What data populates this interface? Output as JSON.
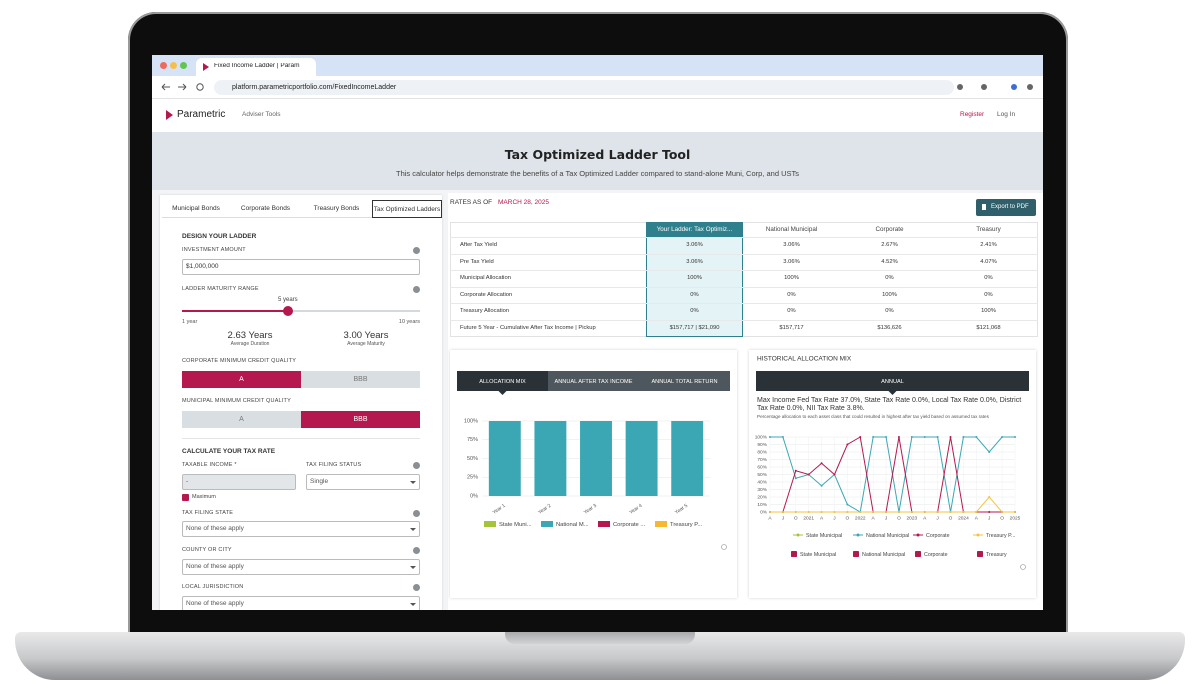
{
  "browser": {
    "tab_title": "Fixed Income Ladder | Param",
    "url": "platform.parametricportfolio.com/FixedIncomeLadder"
  },
  "nav": {
    "brand": "Parametric",
    "menu": "Adviser Tools",
    "links": [
      "Register",
      "Log In"
    ]
  },
  "hero": {
    "title": "Tax Optimized Ladder Tool",
    "subtitle": "This calculator helps demonstrate the benefits of a Tax Optimized Ladder compared to stand-alone Muni, Corp, and USTs"
  },
  "tabs": [
    "Municipal Bonds",
    "Corporate Bonds",
    "Treasury Bonds",
    "Tax Optimized Ladders"
  ],
  "design": {
    "heading": "DESIGN YOUR LADDER",
    "investment_label": "INVESTMENT AMOUNT",
    "investment_value": "$1,000,000",
    "range_label": "LADDER MATURITY RANGE",
    "range_value": "5 years",
    "range_min": "1 year",
    "range_max": "10 years",
    "duration": "2.63 Years",
    "duration_label": "Average Duration",
    "maturity": "3.00 Years",
    "maturity_label": "Average Maturity",
    "corp_label": "CORPORATE MINIMUM CREDIT QUALITY",
    "corp_options": [
      "A",
      "BBB"
    ],
    "muni_label": "MUNICIPAL MINIMUM CREDIT QUALITY",
    "muni_options": [
      "A",
      "BBB"
    ]
  },
  "tax": {
    "heading": "CALCULATE YOUR TAX RATE",
    "income_label": "TAXABLE INCOME *",
    "income_value": "-",
    "maximum": "Maximum",
    "status_label": "TAX FILING STATUS",
    "status_value": "Single",
    "state_label": "TAX FILING STATE",
    "state_value": "None of these apply",
    "county_label": "COUNTY OR CITY",
    "county_value": "None of these apply",
    "local_label": "LOCAL JURISDICTION",
    "local_value": "None of these apply"
  },
  "rates": {
    "label": "RATES AS OF",
    "date": "MARCH 28, 2025",
    "export": "Export to PDF"
  },
  "table": {
    "headers": [
      "Your Ladder: Tax Optimiz...",
      "National Municipal",
      "Corporate",
      "Treasury"
    ],
    "rows": [
      [
        "After Tax Yield",
        "3.06%",
        "3.06%",
        "2.67%",
        "2.41%"
      ],
      [
        "Pre Tax Yield",
        "3.06%",
        "3.06%",
        "4.52%",
        "4.07%"
      ],
      [
        "Municipal Allocation",
        "100%",
        "100%",
        "0%",
        "0%"
      ],
      [
        "Corporate Allocation",
        "0%",
        "0%",
        "100%",
        "0%"
      ],
      [
        "Treasury Allocation",
        "0%",
        "0%",
        "0%",
        "100%"
      ],
      [
        "Future 5 Year - Cumulative After Tax Income | Pickup",
        "$157,717 | $21,090",
        "$157,717",
        "$136,626",
        "$121,068"
      ]
    ]
  },
  "chart_data": [
    {
      "type": "bar",
      "stacked": true,
      "tabs": [
        "ALLOCATION MIX",
        "ANNUAL AFTER TAX INCOME",
        "ANNUAL TOTAL RETURN"
      ],
      "categories": [
        "Year 1",
        "Year 2",
        "Year 3",
        "Year 4",
        "Year 5"
      ],
      "series": [
        {
          "name": "State Muni...",
          "color": "#a6c43a",
          "values": [
            0,
            0,
            0,
            0,
            0
          ]
        },
        {
          "name": "National M...",
          "color": "#3ca7b4",
          "values": [
            100,
            100,
            100,
            100,
            100
          ]
        },
        {
          "name": "Corporate ...",
          "color": "#b5174f",
          "values": [
            0,
            0,
            0,
            0,
            0
          ]
        },
        {
          "name": "Treasury P...",
          "color": "#f5b82e",
          "values": [
            0,
            0,
            0,
            0,
            0
          ]
        }
      ],
      "ylim": [
        0,
        100
      ],
      "yticks": [
        {
          "value": 0,
          "label": "0%"
        },
        {
          "value": 25,
          "label": "25%"
        },
        {
          "value": 50,
          "label": "50%"
        },
        {
          "value": 75,
          "label": "75%"
        },
        {
          "value": 100,
          "label": "100%"
        }
      ],
      "grid": true
    },
    {
      "type": "line",
      "title": "HISTORICAL ALLOCATION MIX",
      "tabs": [
        "ANNUAL"
      ],
      "subtitle": "Max Income Fed Tax Rate 37.0%, State Tax Rate 0.0%, Local Tax Rate 0.0%, District Tax Rate 0.0%, NII Tax Rate 3.8%.",
      "note": "Percentage allocation to each asset class that could resulted in highest after tax yield based on assumed tax rates",
      "categories": [
        "A",
        "J",
        "O",
        "2021",
        "A",
        "J",
        "O",
        "2022",
        "A",
        "J",
        "O",
        "2023",
        "A",
        "J",
        "O",
        "2024",
        "A",
        "J",
        "O",
        "2025"
      ],
      "series": [
        {
          "name": "State Municipal",
          "color": "#a6c43a",
          "values": [
            0,
            0,
            0,
            0,
            0,
            0,
            0,
            0,
            0,
            0,
            0,
            0,
            0,
            0,
            0,
            0,
            0,
            0,
            0,
            0
          ]
        },
        {
          "name": "National Municipal",
          "color": "#3ca7b4",
          "values": [
            100,
            100,
            45,
            50,
            35,
            50,
            10,
            0,
            100,
            100,
            0,
            100,
            100,
            100,
            0,
            100,
            100,
            80,
            100,
            100
          ]
        },
        {
          "name": "Corporate",
          "color": "#b5174f",
          "values": [
            0,
            0,
            55,
            50,
            65,
            50,
            90,
            100,
            0,
            0,
            100,
            0,
            0,
            0,
            100,
            0,
            0,
            0,
            0,
            0
          ]
        },
        {
          "name": "Treasury P...",
          "color": "#f5c342",
          "values": [
            0,
            0,
            0,
            0,
            0,
            0,
            0,
            0,
            0,
            0,
            0,
            0,
            0,
            0,
            0,
            0,
            0,
            20,
            0,
            0
          ]
        }
      ],
      "filters": [
        "State Municipal",
        "National Municipal",
        "Corporate",
        "Treasury"
      ],
      "ylim": [
        0,
        100
      ],
      "yticks": [
        {
          "value": 0,
          "label": "0%"
        },
        {
          "value": 10,
          "label": "10%"
        },
        {
          "value": 20,
          "label": "20%"
        },
        {
          "value": 30,
          "label": "30%"
        },
        {
          "value": 40,
          "label": "40%"
        },
        {
          "value": 50,
          "label": "50%"
        },
        {
          "value": 60,
          "label": "60%"
        },
        {
          "value": 70,
          "label": "70%"
        },
        {
          "value": 80,
          "label": "80%"
        },
        {
          "value": 90,
          "label": "90%"
        },
        {
          "value": 100,
          "label": "100%"
        }
      ],
      "grid": true
    }
  ]
}
